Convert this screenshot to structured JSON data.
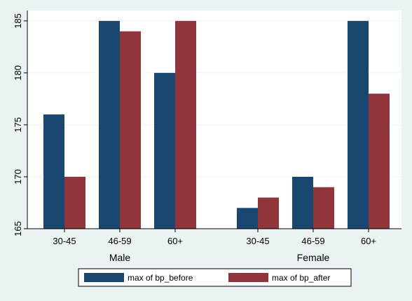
{
  "chart_data": {
    "type": "bar",
    "title": "",
    "xlabel": "",
    "ylabel": "",
    "ylim": [
      165,
      186
    ],
    "yticks": [
      "165",
      "170",
      "175",
      "180",
      "185"
    ],
    "groups": [
      {
        "label": "Male",
        "categories": [
          "30-45",
          "46-59",
          "60+"
        ]
      },
      {
        "label": "Female",
        "categories": [
          "30-45",
          "46-59",
          "60+"
        ]
      }
    ],
    "series": [
      {
        "name": "max of bp_before",
        "color": "#1a476f",
        "values": [
          176,
          185,
          180,
          167,
          170,
          185
        ]
      },
      {
        "name": "max of bp_after",
        "color": "#90353b",
        "values": [
          170,
          184,
          185,
          168,
          169,
          178
        ]
      }
    ],
    "grid": true,
    "legend_position": "bottom"
  }
}
